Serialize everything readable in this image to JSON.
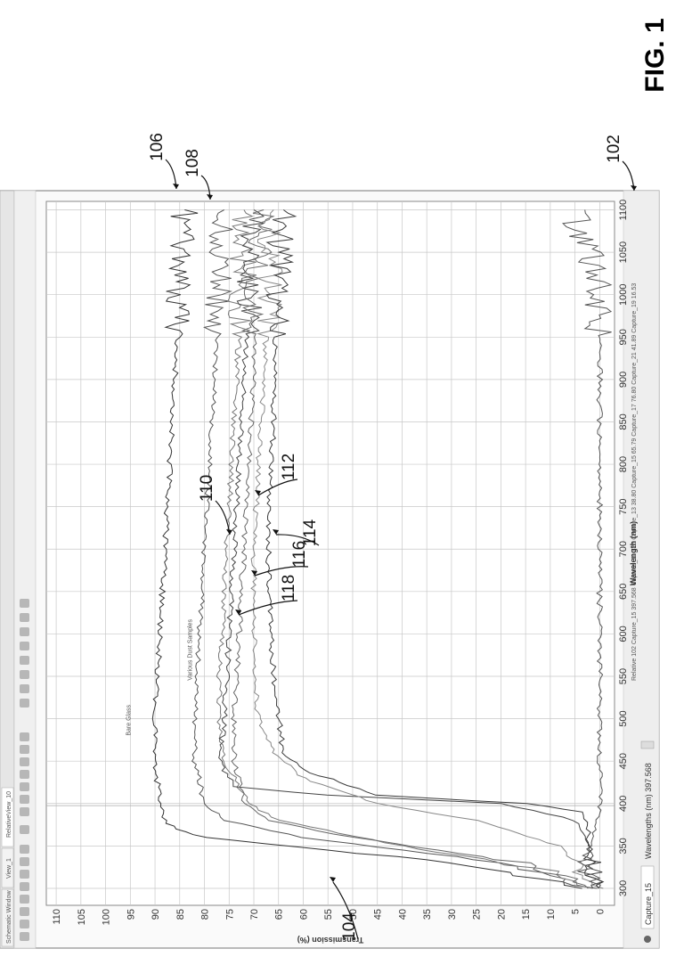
{
  "figure": {
    "label": "FIG. 1",
    "ref_numbers": [
      "102",
      "104",
      "106",
      "108",
      "110",
      "112",
      "114",
      "116",
      "118"
    ]
  },
  "window": {
    "tabs": [
      "Schematic Window",
      "View_1",
      "RelativeView_10"
    ],
    "capture_label": "Capture_15",
    "readout_label": "Wavelengths (nm) 397.568",
    "status_text": "Relative 102 Capture_15 397.568 Capture_11 326 Capture_13 38.80 Capture_15 65.79 Capture_17 76.80 Capture_21 41.89 Capture_19 16.53"
  },
  "chart_data": {
    "type": "line",
    "xlabel": "Wavelength (nm)",
    "ylabel": "Transmission (%)",
    "xlim": [
      280,
      1110
    ],
    "ylim": [
      -3,
      112
    ],
    "x_ticks": [
      300,
      350,
      400,
      450,
      500,
      550,
      600,
      650,
      700,
      750,
      800,
      850,
      900,
      950,
      1000,
      1050,
      1100
    ],
    "y_ticks": [
      0,
      5,
      10,
      15,
      20,
      25,
      30,
      35,
      40,
      45,
      50,
      55,
      60,
      65,
      70,
      75,
      80,
      85,
      90,
      95,
      100,
      105,
      110
    ],
    "grid": true,
    "annotations": [
      "Bare Glass",
      "Various Dust Samples"
    ],
    "series": [
      {
        "ref": "106",
        "x": [
          300,
          330,
          360,
          370,
          380,
          400,
          450,
          500,
          550,
          600,
          650,
          700,
          750,
          800,
          850,
          900,
          950,
          1000,
          1050,
          1100
        ],
        "y": [
          2,
          30,
          80,
          86,
          88,
          89,
          90,
          90,
          89.5,
          89,
          88.5,
          88,
          87.5,
          87,
          86.5,
          86,
          85.5,
          85,
          85,
          84
        ]
      },
      {
        "ref": "108",
        "x": [
          300,
          330,
          360,
          380,
          400,
          450,
          500,
          550,
          600,
          650,
          700,
          750,
          800,
          850,
          900,
          950,
          1000,
          1050,
          1100
        ],
        "y": [
          2,
          20,
          60,
          76,
          80,
          82,
          82,
          81.5,
          81,
          80.5,
          80,
          79.5,
          79,
          78.5,
          78,
          77.5,
          77,
          77,
          76
        ]
      },
      {
        "ref": "110",
        "x": [
          300,
          320,
          350,
          380,
          400,
          450,
          500,
          550,
          600,
          650,
          700,
          750,
          800,
          850,
          900,
          950,
          1000,
          1050,
          1100
        ],
        "y": [
          2,
          10,
          40,
          65,
          71,
          76,
          77,
          77,
          76.5,
          76,
          75.5,
          75,
          74.5,
          74,
          73.5,
          73,
          72.5,
          72,
          72
        ]
      },
      {
        "ref": "112",
        "x": [
          300,
          350,
          380,
          400,
          410,
          420,
          450,
          500,
          550,
          600,
          650,
          700,
          750,
          800,
          850,
          900,
          950,
          1000,
          1050,
          1100
        ],
        "y": [
          1,
          2,
          5,
          20,
          55,
          74,
          77,
          76,
          75.5,
          75,
          74.5,
          74,
          73.5,
          73,
          72.5,
          72,
          71.5,
          71,
          70,
          70
        ]
      },
      {
        "ref": "114",
        "x": [
          300,
          330,
          360,
          380,
          400,
          450,
          500,
          550,
          600,
          650,
          700,
          750,
          800,
          850,
          900,
          950,
          1000,
          1050,
          1100
        ],
        "y": [
          1,
          15,
          50,
          67,
          72,
          74,
          74,
          73.5,
          73,
          72.5,
          72,
          71.5,
          71,
          70.5,
          70,
          70,
          69.5,
          69,
          68
        ]
      },
      {
        "ref": "116",
        "x": [
          300,
          350,
          380,
          400,
          430,
          460,
          500,
          550,
          600,
          650,
          700,
          750,
          800,
          850,
          900,
          950,
          1000,
          1050,
          1100
        ],
        "y": [
          1,
          8,
          25,
          45,
          60,
          66,
          69,
          70,
          70,
          70,
          70,
          69.5,
          69,
          68.5,
          68,
          67.5,
          67,
          67,
          66
        ]
      },
      {
        "ref": "118",
        "x": [
          300,
          350,
          390,
          400,
          410,
          440,
          460,
          500,
          550,
          600,
          650,
          700,
          750,
          800,
          850,
          900,
          950,
          1000,
          1050,
          1100
        ],
        "y": [
          1,
          2,
          3,
          15,
          45,
          60,
          64,
          65,
          66,
          66.5,
          67,
          67,
          67,
          66.5,
          66,
          66,
          65.5,
          65,
          65,
          64
        ]
      },
      {
        "ref": "102",
        "x": [
          300,
          320,
          350,
          400,
          500,
          600,
          700,
          800,
          900,
          1000,
          1050,
          1080,
          1100
        ],
        "y": [
          0,
          3,
          2,
          0,
          0,
          0,
          0,
          0,
          0,
          0,
          2,
          5,
          3
        ]
      }
    ]
  }
}
